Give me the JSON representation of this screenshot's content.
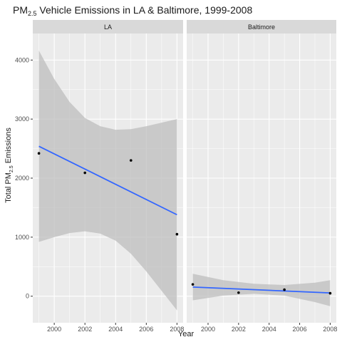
{
  "chart_data": {
    "type": "scatter",
    "title": {
      "base": "PM",
      "sub": "2.5",
      "rest": " Vehicle Emissions in LA & Baltimore, 1999-2008"
    },
    "xlabel": "Year",
    "ylabel": {
      "base": "Total PM",
      "sub": "2.5",
      "rest": " Emissions"
    },
    "xlim": [
      1998.6,
      2008.4
    ],
    "ylim": [
      -450,
      4450
    ],
    "x_ticks": [
      2000,
      2002,
      2004,
      2006,
      2008
    ],
    "y_ticks": [
      0,
      1000,
      2000,
      3000,
      4000
    ],
    "grid": true,
    "panels": [
      {
        "strip": "LA",
        "points": [
          {
            "x": 1999,
            "y": 2420
          },
          {
            "x": 2002,
            "y": 2090
          },
          {
            "x": 2005,
            "y": 2300
          },
          {
            "x": 2008,
            "y": 1050
          }
        ],
        "fit": {
          "x": [
            1999,
            2008
          ],
          "y": [
            2540,
            1380
          ]
        },
        "band": [
          {
            "x": 1999,
            "lo": 920,
            "hi": 4160
          },
          {
            "x": 2000,
            "lo": 1000,
            "hi": 3680
          },
          {
            "x": 2001,
            "lo": 1070,
            "hi": 3290
          },
          {
            "x": 2002,
            "lo": 1100,
            "hi": 3020
          },
          {
            "x": 2003,
            "lo": 1060,
            "hi": 2880
          },
          {
            "x": 2004,
            "lo": 940,
            "hi": 2820
          },
          {
            "x": 2005,
            "lo": 720,
            "hi": 2830
          },
          {
            "x": 2006,
            "lo": 420,
            "hi": 2880
          },
          {
            "x": 2007,
            "lo": 90,
            "hi": 2940
          },
          {
            "x": 2008,
            "lo": -240,
            "hi": 3000
          }
        ]
      },
      {
        "strip": "Baltimore",
        "points": [
          {
            "x": 1999,
            "y": 200
          },
          {
            "x": 2002,
            "y": 60
          },
          {
            "x": 2005,
            "y": 110
          },
          {
            "x": 2008,
            "y": 50
          }
        ],
        "fit": {
          "x": [
            1999,
            2008
          ],
          "y": [
            155,
            55
          ]
        },
        "band": [
          {
            "x": 1999,
            "lo": -70,
            "hi": 380
          },
          {
            "x": 2001,
            "lo": 10,
            "hi": 270
          },
          {
            "x": 2003,
            "lo": 40,
            "hi": 210
          },
          {
            "x": 2005,
            "lo": 10,
            "hi": 190
          },
          {
            "x": 2007,
            "lo": -100,
            "hi": 230
          },
          {
            "x": 2008,
            "lo": -170,
            "hi": 270
          }
        ]
      }
    ],
    "colors": {
      "panel_bg": "#ebebeb",
      "strip_bg": "#d9d9d9",
      "grid_major": "#ffffff",
      "band": "#bebebe",
      "fit_line": "#3366ff",
      "point": "#000000",
      "tick": "#333333"
    }
  }
}
